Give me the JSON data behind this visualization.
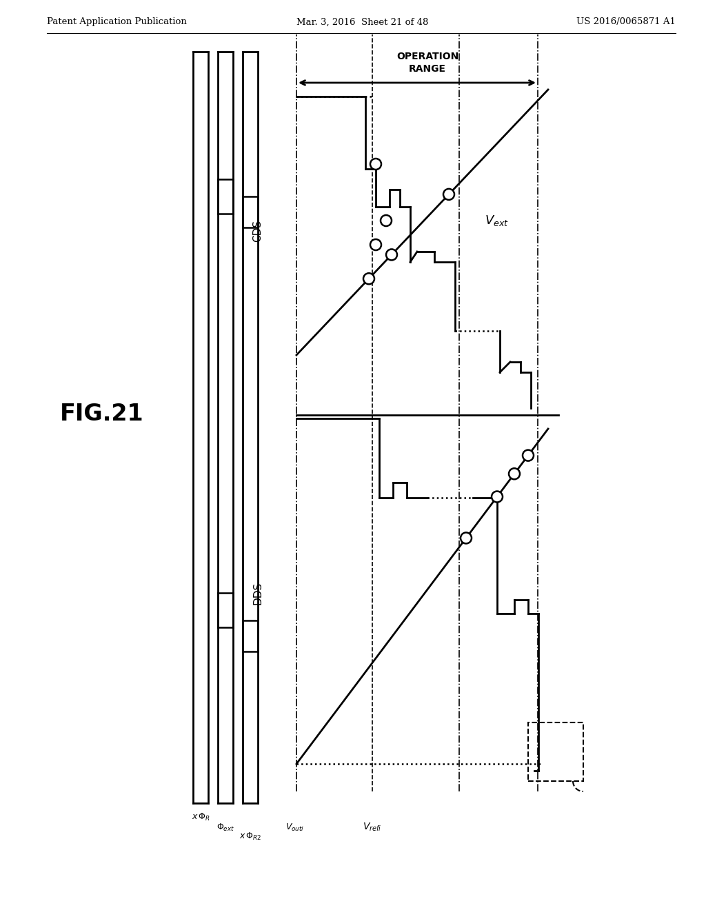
{
  "title_left": "Patent Application Publication",
  "title_mid": "Mar. 3, 2016  Sheet 21 of 48",
  "title_right": "US 2016/0065871 A1",
  "fig_label": "FIG.21",
  "bg_color": "#ffffff",
  "line_color": "#000000"
}
